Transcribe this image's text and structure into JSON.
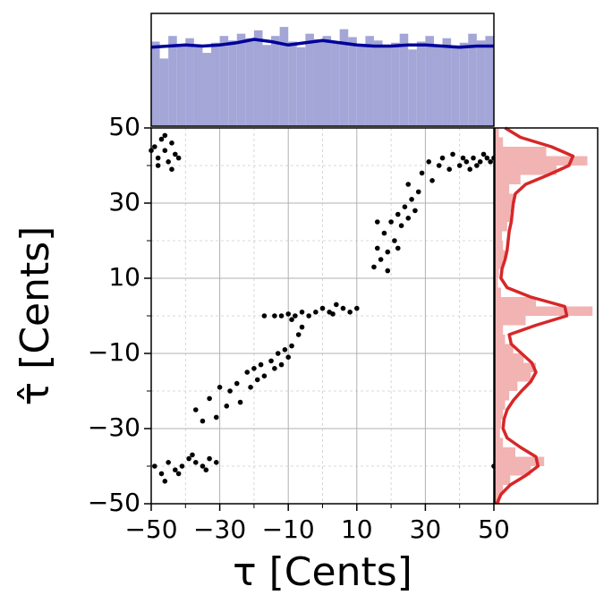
{
  "chart_data": [
    {
      "type": "scatter",
      "xlabel": "τ [Cents]",
      "ylabel": "τ̂ [Cents]",
      "color": "#000000",
      "x": [
        -49,
        -48,
        -47,
        -46,
        -45,
        -44,
        -43,
        -48,
        -46,
        -44,
        -50,
        -42,
        -49,
        -47,
        -45,
        -43,
        -41,
        -39,
        -37,
        -35,
        -33,
        -31,
        -46,
        -42,
        -38,
        -34,
        -37,
        -35,
        -33,
        -31,
        -30,
        -28,
        -27,
        -25,
        -24,
        -22,
        -21,
        -20,
        -19,
        -18,
        -17,
        -15,
        -14,
        -13,
        -12,
        -11,
        -10,
        -9,
        -7,
        -6,
        -17,
        -14,
        -12,
        -10,
        -8,
        -6,
        -4,
        -2,
        0,
        2,
        4,
        6,
        8,
        10,
        -9,
        3,
        15,
        16,
        17,
        18,
        19,
        20,
        21,
        22,
        23,
        24,
        25,
        26,
        27,
        28,
        16,
        19,
        22,
        25,
        29,
        31,
        32,
        34,
        35,
        37,
        38,
        40,
        41,
        42,
        43,
        44,
        45,
        46,
        47,
        48,
        49,
        50,
        50
      ],
      "y": [
        45,
        42,
        47,
        44,
        41,
        46,
        43,
        40,
        48,
        39,
        44,
        42,
        -40,
        -42,
        -39,
        -41,
        -40,
        -38,
        -39,
        -40,
        -38,
        -39,
        -44,
        -42,
        -37,
        -41,
        -25,
        -28,
        -22,
        -27,
        -19,
        -24,
        -20,
        -18,
        -23,
        -15,
        -19,
        -14,
        -17,
        -13,
        -16,
        -12,
        -14,
        -10,
        -13,
        -9,
        -11,
        -8,
        -5,
        -3,
        0,
        0,
        0,
        0.5,
        0,
        1,
        0,
        1,
        2,
        1,
        3,
        2,
        1,
        2,
        -1,
        0.5,
        13,
        18,
        15,
        22,
        17,
        25,
        20,
        27,
        24,
        29,
        26,
        31,
        28,
        33,
        25,
        12,
        18,
        35,
        38,
        41,
        36,
        40,
        42,
        39,
        43,
        40,
        42,
        41,
        39,
        42,
        40,
        41,
        43,
        42,
        41,
        42,
        -40
      ],
      "xlim": [
        -50,
        50
      ],
      "ylim": [
        -50,
        50
      ],
      "xticks": [
        {
          "value": -50,
          "label": "−50"
        },
        {
          "value": -30,
          "label": "−30"
        },
        {
          "value": -10,
          "label": "−10"
        },
        10,
        30,
        50
      ],
      "yticks": [
        {
          "value": -50,
          "label": "−50"
        },
        {
          "value": -30,
          "label": "−30"
        },
        {
          "value": -10,
          "label": "−10"
        },
        10,
        30,
        50
      ],
      "xminorticks": [
        -40,
        -20,
        0,
        20,
        40
      ],
      "yminorticks": [
        -40,
        -20,
        0,
        20,
        40
      ],
      "grid": true
    },
    {
      "type": "histogram",
      "orientation": "vertical",
      "color": "#a3a6d6",
      "kde_color": "#00009a",
      "bins": [
        -50,
        -47.5,
        -45,
        -42.5,
        -40,
        -37.5,
        -35,
        -32.5,
        -30,
        -27.5,
        -25,
        -22.5,
        -20,
        -17.5,
        -15,
        -12.5,
        -10,
        -7.5,
        -5,
        -2.5,
        0,
        2.5,
        5,
        7.5,
        10,
        12.5,
        15,
        17.5,
        20,
        22.5,
        25,
        27.5,
        30,
        32.5,
        35,
        37.5,
        40,
        42.5,
        45,
        47.5,
        50
      ],
      "counts": [
        75,
        60,
        80,
        72,
        78,
        70,
        65,
        74,
        80,
        76,
        82,
        78,
        85,
        72,
        80,
        88,
        75,
        70,
        82,
        77,
        80,
        74,
        86,
        79,
        72,
        80,
        76,
        70,
        74,
        82,
        68,
        75,
        80,
        72,
        78,
        70,
        74,
        82,
        76,
        80
      ],
      "kde_x": [
        -50,
        -45,
        -40,
        -35,
        -30,
        -25,
        -20,
        -15,
        -10,
        -5,
        0,
        5,
        10,
        15,
        20,
        25,
        30,
        35,
        40,
        45,
        50
      ],
      "kde_y": [
        70,
        71,
        72,
        71,
        72,
        74,
        77,
        75,
        72,
        74,
        76,
        74,
        72,
        71,
        71,
        72,
        72,
        71,
        70,
        71,
        71
      ],
      "xlim": [
        -50,
        50
      ],
      "ylim": [
        0,
        100
      ]
    },
    {
      "type": "histogram",
      "orientation": "horizontal",
      "color": "#f2b3b3",
      "kde_color": "#d62728",
      "bins": [
        -50,
        -47.5,
        -45,
        -42.5,
        -40,
        -37.5,
        -35,
        -32.5,
        -30,
        -27.5,
        -25,
        -22.5,
        -20,
        -17.5,
        -15,
        -12.5,
        -10,
        -7.5,
        -5,
        -2.5,
        0,
        2.5,
        5,
        7.5,
        10,
        12.5,
        15,
        17.5,
        20,
        22.5,
        25,
        27.5,
        30,
        32.5,
        35,
        37.5,
        40,
        42.5,
        45,
        47.5,
        50
      ],
      "counts": [
        5,
        8,
        15,
        35,
        48,
        20,
        8,
        5,
        6,
        8,
        10,
        14,
        22,
        35,
        40,
        28,
        18,
        10,
        8,
        30,
        95,
        40,
        6,
        3,
        4,
        8,
        10,
        8,
        7,
        12,
        15,
        18,
        20,
        14,
        25,
        60,
        90,
        50,
        8,
        4
      ],
      "kde_x": [
        -50,
        -47.5,
        -45,
        -42.5,
        -40,
        -37.5,
        -35,
        -32.5,
        -30,
        -27.5,
        -25,
        -22.5,
        -20,
        -17.5,
        -15,
        -12.5,
        -10,
        -7.5,
        -5,
        -2.5,
        0,
        2.5,
        5,
        7.5,
        10,
        12.5,
        15,
        17.5,
        20,
        22.5,
        25,
        27.5,
        30,
        32.5,
        35,
        37.5,
        40,
        42.5,
        45,
        47.5,
        50
      ],
      "kde_y": [
        2,
        6,
        15,
        30,
        42,
        40,
        25,
        12,
        8,
        9,
        12,
        18,
        26,
        35,
        40,
        36,
        26,
        16,
        14,
        40,
        70,
        68,
        35,
        12,
        6,
        7,
        10,
        12,
        13,
        14,
        16,
        17,
        18,
        20,
        30,
        52,
        72,
        76,
        55,
        25,
        10
      ],
      "ylim": [
        -50,
        50
      ],
      "xlim": [
        0,
        100
      ]
    }
  ]
}
